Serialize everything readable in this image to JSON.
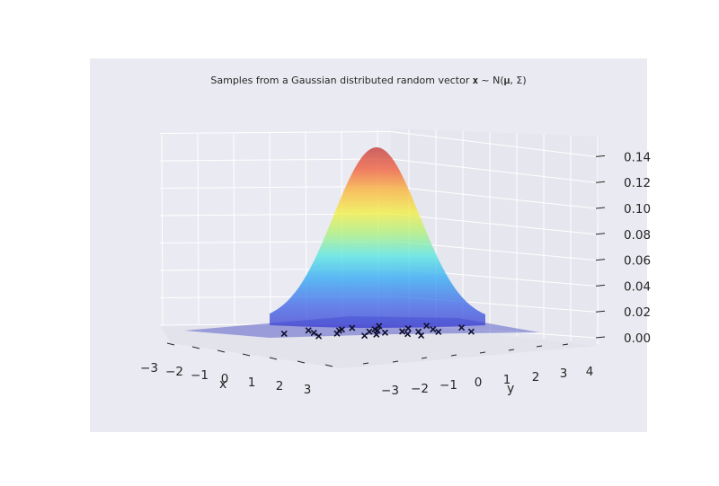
{
  "chart_data": {
    "type": "surface",
    "title": "Samples from a Gaussian distributed random vector 𝐱 ~ N(𝛍, Σ)",
    "xlabel": "x",
    "ylabel": "y",
    "zlabel": "",
    "x_ticks": [
      "−3",
      "−2",
      "−1",
      "0",
      "1",
      "2",
      "3"
    ],
    "y_ticks": [
      "−3",
      "−2",
      "−1",
      "0",
      "1",
      "2",
      "3",
      "4"
    ],
    "z_ticks": [
      "0.00",
      "0.02",
      "0.04",
      "0.06",
      "0.08",
      "0.10",
      "0.12",
      "0.14"
    ],
    "xlim": [
      -3.5,
      3.5
    ],
    "ylim": [
      -3.5,
      4.5
    ],
    "zlim": [
      0,
      0.15
    ],
    "surface": {
      "description": "bivariate normal density",
      "mean": [
        0,
        0
      ],
      "covariance": [
        [
          1,
          0
        ],
        [
          0,
          1
        ]
      ],
      "peak_density": 0.159,
      "colormap": "jet"
    },
    "samples": {
      "marker": "x",
      "color": "#000000",
      "points": [
        [
          -1.2,
          0.3
        ],
        [
          -0.8,
          -0.5
        ],
        [
          -0.3,
          0.2
        ],
        [
          0.1,
          -0.4
        ],
        [
          0.4,
          0.6
        ],
        [
          0.9,
          -0.2
        ],
        [
          1.3,
          0.4
        ],
        [
          -1.6,
          -0.2
        ],
        [
          -0.5,
          1.1
        ],
        [
          0.2,
          1.4
        ],
        [
          0.7,
          0.9
        ],
        [
          -0.9,
          1.3
        ],
        [
          1.6,
          -0.7
        ],
        [
          -1.9,
          0.8
        ],
        [
          0.0,
          0.0
        ],
        [
          -0.2,
          -1.1
        ],
        [
          0.6,
          -1.3
        ],
        [
          1.1,
          1.2
        ],
        [
          -1.4,
          -1.0
        ],
        [
          2.1,
          0.3
        ],
        [
          -2.3,
          -0.4
        ],
        [
          0.3,
          2.0
        ],
        [
          -0.6,
          -0.8
        ],
        [
          1.8,
          1.6
        ],
        [
          -0.1,
          0.7
        ]
      ]
    },
    "grid": true,
    "background": "#eaeaf2"
  }
}
